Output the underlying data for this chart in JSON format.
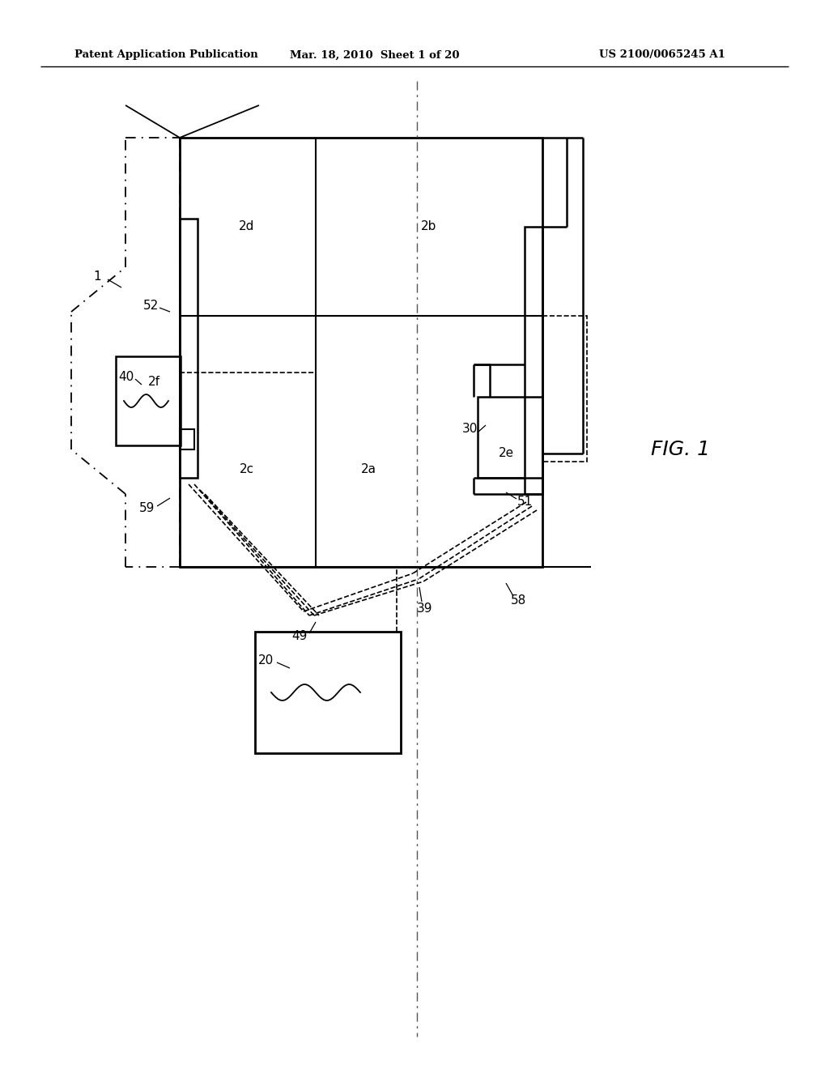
{
  "bg_color": "#ffffff",
  "line_color": "#000000",
  "header_text_left": "Patent Application Publication",
  "header_text_mid": "Mar. 18, 2010  Sheet 1 of 20",
  "header_text_right": "US 2100/0065245 A1"
}
